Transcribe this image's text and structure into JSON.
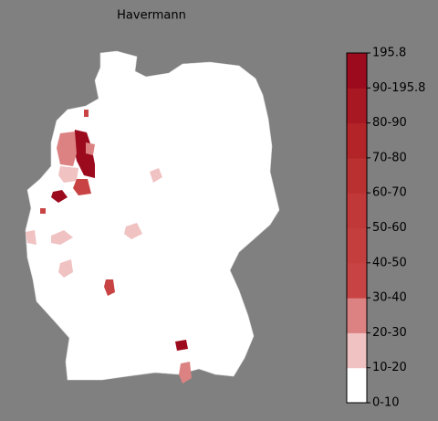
{
  "title": "Havermann",
  "colorbar": {
    "labels": [
      "0-10",
      "10-20",
      "20-30",
      "30-40",
      "40-50",
      "50-60",
      "60-70",
      "70-80",
      "80-90",
      "90-195.8",
      "195.8"
    ],
    "colors": [
      "#ffffff",
      "#f0c2c2",
      "#dc8282",
      "#c84444",
      "#c43e3e",
      "#c03838",
      "#ba3030",
      "#b22428",
      "#a81822",
      "#9c0a1e"
    ]
  }
}
